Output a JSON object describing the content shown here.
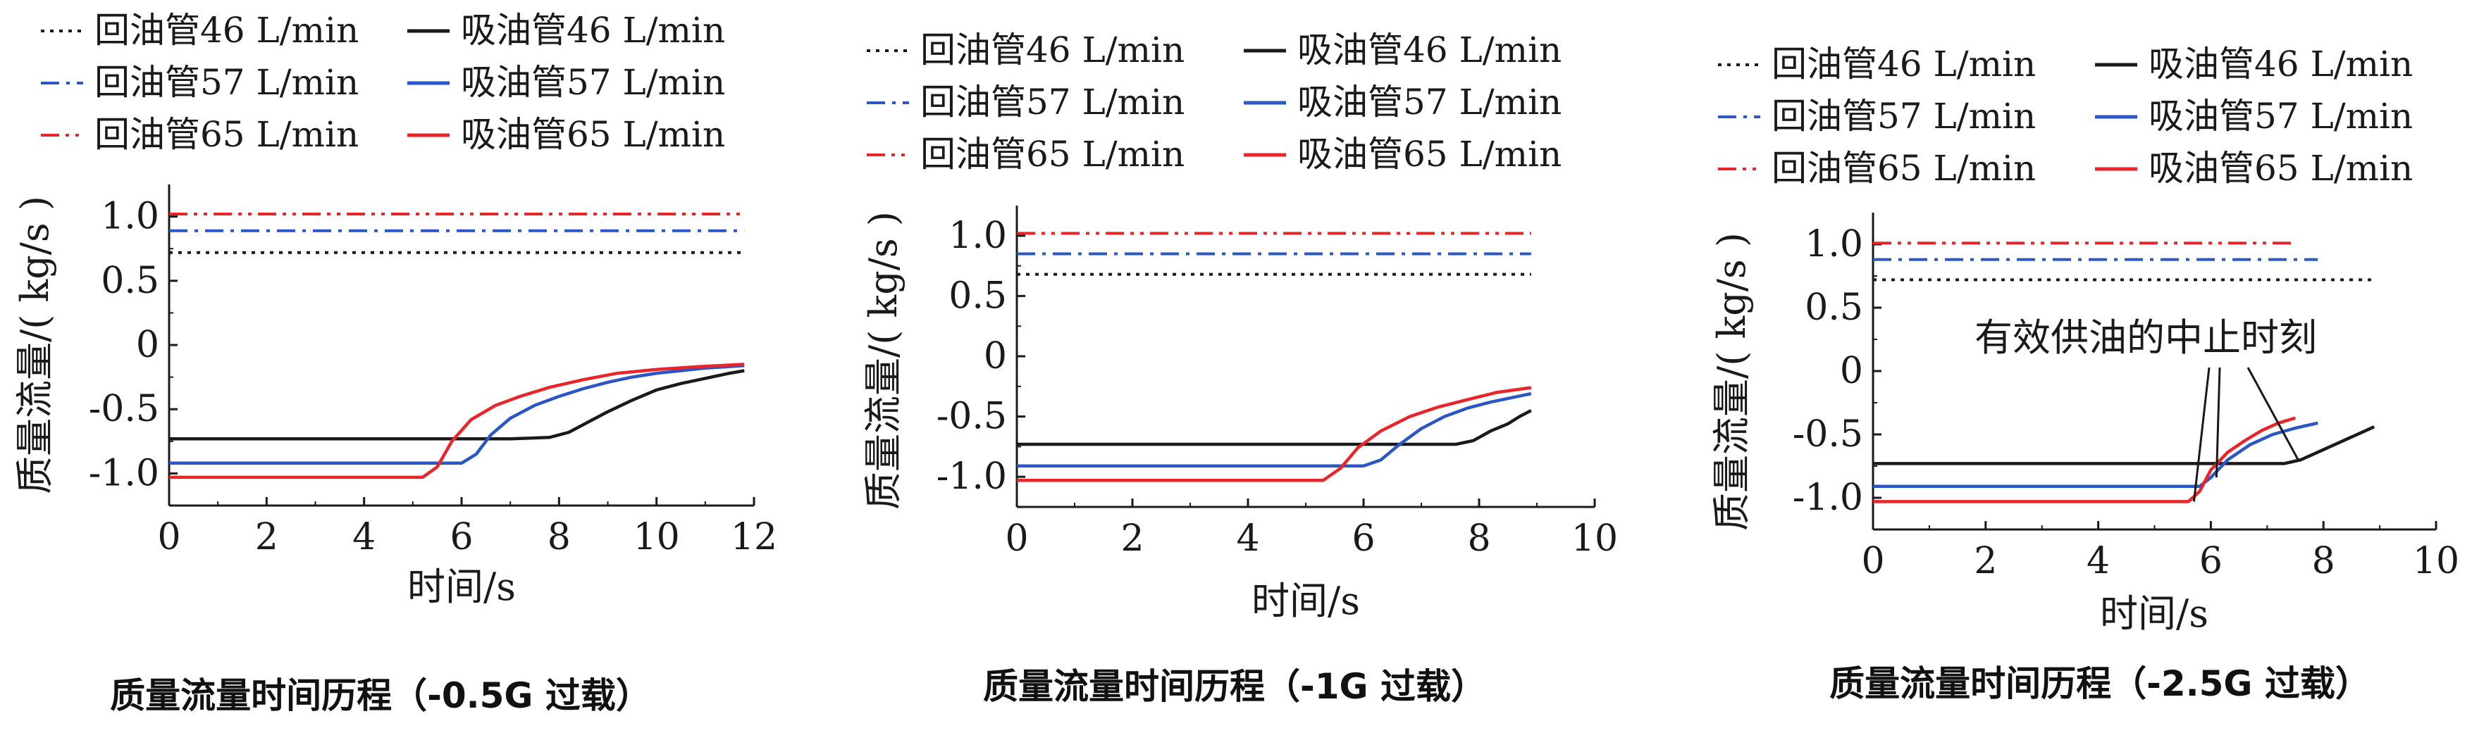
{
  "legend_labels": {
    "return_46": "回油管46 L/min",
    "suction_46": "吸油管46 L/min",
    "return_57": "回油管57 L/min",
    "suction_57": "吸油管57 L/min",
    "return_65": "回油管65 L/min",
    "suction_65": "吸油管65 L/min"
  },
  "colors": {
    "black": "#1a1a1a",
    "blue": "#2a56c6",
    "red": "#e8262a"
  },
  "chart_data": [
    {
      "type": "line",
      "caption": "质量流量时间历程（-0.5G 过载）",
      "xlabel": "时间/s",
      "ylabel": "质量流量/( kg/s )",
      "xlim": [
        0,
        12
      ],
      "ylim": [
        -1.25,
        1.25
      ],
      "xticks": [
        0,
        2,
        4,
        6,
        8,
        10,
        12
      ],
      "yticks": [
        1.0,
        0.5,
        0,
        -0.5,
        -1.0
      ],
      "yticklabels": [
        "1.0",
        "0.5",
        "0",
        "-0.5",
        "-1.0"
      ],
      "annotation": "",
      "series": [
        {
          "key": "return_46",
          "style": "dot",
          "color": "black",
          "x": [
            0,
            11.8
          ],
          "y": [
            0.72,
            0.72
          ]
        },
        {
          "key": "return_57",
          "style": "dashdot",
          "color": "blue",
          "x": [
            0,
            11.8
          ],
          "y": [
            0.89,
            0.89
          ]
        },
        {
          "key": "return_65",
          "style": "dashdotdot",
          "color": "red",
          "x": [
            0,
            11.8
          ],
          "y": [
            1.02,
            1.02
          ]
        },
        {
          "key": "suction_46",
          "style": "solid",
          "color": "black",
          "x": [
            0,
            7.0,
            7.8,
            8.2,
            8.6,
            9.0,
            9.5,
            10.0,
            10.5,
            11.0,
            11.5,
            11.8
          ],
          "y": [
            -0.73,
            -0.73,
            -0.72,
            -0.68,
            -0.6,
            -0.52,
            -0.43,
            -0.35,
            -0.3,
            -0.26,
            -0.22,
            -0.2
          ]
        },
        {
          "key": "suction_57",
          "style": "solid",
          "color": "blue",
          "x": [
            0,
            6.0,
            6.3,
            6.6,
            7.0,
            7.5,
            8.0,
            8.5,
            9.0,
            9.5,
            10.0,
            10.5,
            11.0,
            11.8
          ],
          "y": [
            -0.92,
            -0.92,
            -0.85,
            -0.7,
            -0.57,
            -0.47,
            -0.4,
            -0.34,
            -0.29,
            -0.25,
            -0.22,
            -0.2,
            -0.18,
            -0.16
          ]
        },
        {
          "key": "suction_65",
          "style": "solid",
          "color": "red",
          "x": [
            0,
            5.2,
            5.5,
            5.8,
            6.2,
            6.7,
            7.2,
            7.8,
            8.5,
            9.2,
            10.0,
            10.8,
            11.8
          ],
          "y": [
            -1.03,
            -1.03,
            -0.95,
            -0.75,
            -0.58,
            -0.47,
            -0.4,
            -0.33,
            -0.27,
            -0.22,
            -0.19,
            -0.17,
            -0.15
          ]
        }
      ]
    },
    {
      "type": "line",
      "caption": "质量流量时间历程（-1G 过载）",
      "xlabel": "时间/s",
      "ylabel": "质量流量/( kg/s )",
      "xlim": [
        0,
        10
      ],
      "ylim": [
        -1.25,
        1.25
      ],
      "xticks": [
        0,
        2,
        4,
        6,
        8,
        10
      ],
      "yticks": [
        1.0,
        0.5,
        0,
        -0.5,
        -1.0
      ],
      "yticklabels": [
        "1.0",
        "0.5",
        "0",
        "-0.5",
        "-1.0"
      ],
      "annotation": "",
      "series": [
        {
          "key": "return_46",
          "style": "dot",
          "color": "black",
          "x": [
            0,
            8.9
          ],
          "y": [
            0.68,
            0.68
          ]
        },
        {
          "key": "return_57",
          "style": "dashdot",
          "color": "blue",
          "x": [
            0,
            8.9
          ],
          "y": [
            0.85,
            0.85
          ]
        },
        {
          "key": "return_65",
          "style": "dashdotdot",
          "color": "red",
          "x": [
            0,
            8.9
          ],
          "y": [
            1.02,
            1.02
          ]
        },
        {
          "key": "suction_46",
          "style": "solid",
          "color": "black",
          "x": [
            0,
            7.6,
            7.9,
            8.2,
            8.5,
            8.7,
            8.9
          ],
          "y": [
            -0.73,
            -0.73,
            -0.7,
            -0.62,
            -0.56,
            -0.5,
            -0.45
          ]
        },
        {
          "key": "suction_57",
          "style": "solid",
          "color": "blue",
          "x": [
            0,
            6.0,
            6.3,
            6.6,
            7.0,
            7.4,
            7.8,
            8.2,
            8.6,
            8.9
          ],
          "y": [
            -0.91,
            -0.91,
            -0.86,
            -0.74,
            -0.6,
            -0.5,
            -0.43,
            -0.38,
            -0.34,
            -0.31
          ]
        },
        {
          "key": "suction_65",
          "style": "solid",
          "color": "red",
          "x": [
            0,
            5.3,
            5.6,
            5.9,
            6.3,
            6.8,
            7.3,
            7.8,
            8.3,
            8.9
          ],
          "y": [
            -1.03,
            -1.03,
            -0.93,
            -0.76,
            -0.62,
            -0.5,
            -0.42,
            -0.36,
            -0.3,
            -0.26
          ]
        }
      ]
    },
    {
      "type": "line",
      "caption": "质量流量时间历程（-2.5G 过载）",
      "xlabel": "时间/s",
      "ylabel": "质量流量/( kg/s )",
      "xlim": [
        0,
        10
      ],
      "ylim": [
        -1.25,
        1.25
      ],
      "xticks": [
        0,
        2,
        4,
        6,
        8,
        10
      ],
      "yticks": [
        1.0,
        0.5,
        0,
        -0.5,
        -1.0
      ],
      "yticklabels": [
        "1.0",
        "0.5",
        "0",
        "-0.5",
        "-1.0"
      ],
      "annotation": "有效供油的中止时刻",
      "series": [
        {
          "key": "return_46",
          "style": "dot",
          "color": "black",
          "x": [
            0,
            8.9
          ],
          "y": [
            0.72,
            0.72
          ]
        },
        {
          "key": "return_57",
          "style": "dashdot",
          "color": "blue",
          "x": [
            0,
            7.9
          ],
          "y": [
            0.88,
            0.88
          ]
        },
        {
          "key": "return_65",
          "style": "dashdotdot",
          "color": "red",
          "x": [
            0,
            7.5
          ],
          "y": [
            1.01,
            1.01
          ]
        },
        {
          "key": "suction_46",
          "style": "solid",
          "color": "black",
          "x": [
            0,
            7.3,
            7.6,
            7.8,
            8.1,
            8.4,
            8.7,
            8.9
          ],
          "y": [
            -0.73,
            -0.73,
            -0.7,
            -0.66,
            -0.6,
            -0.54,
            -0.48,
            -0.44
          ]
        },
        {
          "key": "suction_57",
          "style": "solid",
          "color": "blue",
          "x": [
            0,
            5.8,
            6.0,
            6.3,
            6.7,
            7.1,
            7.5,
            7.9
          ],
          "y": [
            -0.91,
            -0.91,
            -0.84,
            -0.7,
            -0.58,
            -0.5,
            -0.45,
            -0.41
          ]
        },
        {
          "key": "suction_65",
          "style": "solid",
          "color": "red",
          "x": [
            0,
            5.6,
            5.8,
            6.0,
            6.3,
            6.6,
            6.9,
            7.2,
            7.5
          ],
          "y": [
            -1.03,
            -1.03,
            -0.95,
            -0.78,
            -0.64,
            -0.55,
            -0.47,
            -0.41,
            -0.37
          ]
        }
      ]
    }
  ]
}
